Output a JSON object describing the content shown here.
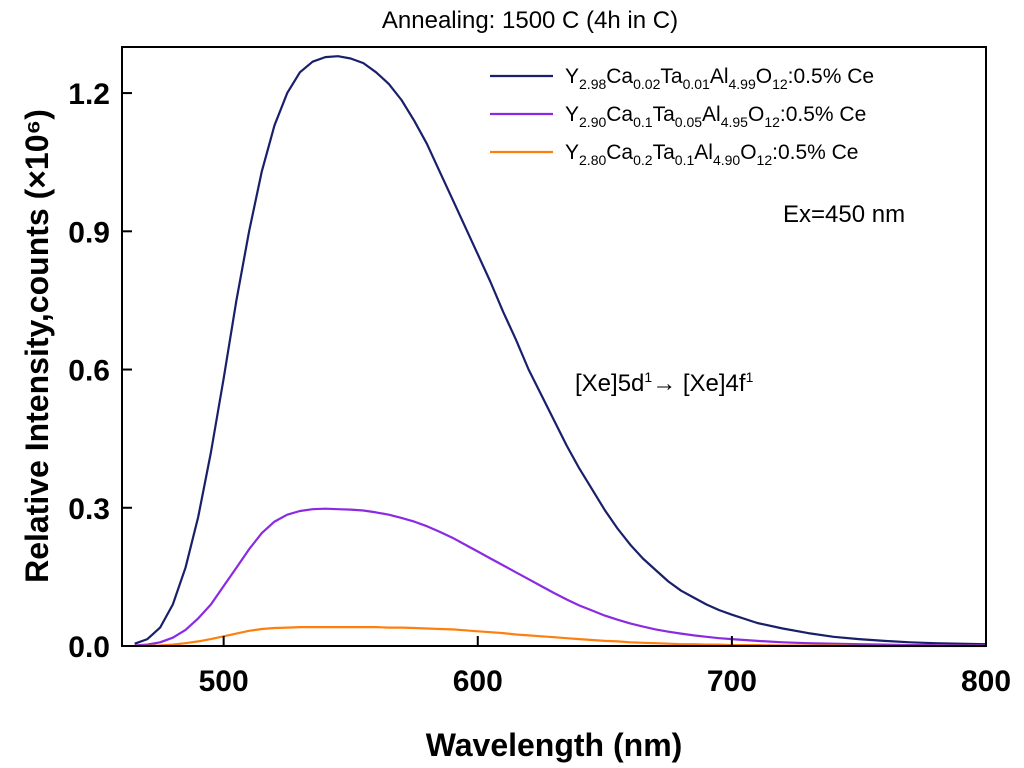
{
  "chart_data": {
    "type": "line",
    "title": "Annealing: 1500 C (4h in C)",
    "xlabel": "Wavelength (nm)",
    "ylabel": "Relative Intensity,counts (×10⁶)",
    "xlim": [
      460,
      800
    ],
    "ylim": [
      0,
      1.3
    ],
    "xticks": [
      500,
      600,
      700,
      800
    ],
    "yticks": [
      0.0,
      0.3,
      0.6,
      0.9,
      1.2
    ],
    "xtick_labels": [
      "500",
      "600",
      "700",
      "800"
    ],
    "ytick_labels": [
      "0.0",
      "0.3",
      "0.6",
      "0.9",
      "1.2"
    ],
    "grid": false,
    "legend_position": "top-right",
    "annotations": [
      {
        "id": "excitation",
        "text": "Ex=450 nm"
      },
      {
        "id": "transition",
        "parts": [
          {
            "t": "[Xe]5d"
          },
          {
            "t": "1",
            "s": "sup"
          },
          {
            "t": "→ [Xe]4f"
          },
          {
            "t": "1",
            "s": "sup"
          }
        ]
      }
    ],
    "x": [
      465,
      470,
      475,
      480,
      485,
      490,
      495,
      500,
      505,
      510,
      515,
      520,
      525,
      530,
      535,
      540,
      545,
      550,
      555,
      560,
      565,
      570,
      575,
      580,
      585,
      590,
      595,
      600,
      605,
      610,
      615,
      620,
      625,
      630,
      635,
      640,
      645,
      650,
      655,
      660,
      665,
      670,
      675,
      680,
      685,
      690,
      695,
      700,
      710,
      720,
      730,
      740,
      750,
      760,
      770,
      780,
      790,
      800
    ],
    "series": [
      {
        "name": "Y2.98Ca0.02Ta0.01Al4.99O12:0.5% Ce",
        "name_parts": [
          {
            "t": "Y"
          },
          {
            "t": "2.98",
            "s": "sub"
          },
          {
            "t": "Ca"
          },
          {
            "t": "0.02",
            "s": "sub"
          },
          {
            "t": "Ta"
          },
          {
            "t": "0.01",
            "s": "sub"
          },
          {
            "t": "Al"
          },
          {
            "t": "4.99",
            "s": "sub"
          },
          {
            "t": "O"
          },
          {
            "t": "12",
            "s": "sub"
          },
          {
            "t": ":0.5% Ce"
          }
        ],
        "color": "#1a1f6b",
        "values": [
          0.005,
          0.015,
          0.04,
          0.09,
          0.17,
          0.28,
          0.42,
          0.58,
          0.75,
          0.9,
          1.03,
          1.13,
          1.2,
          1.245,
          1.268,
          1.278,
          1.28,
          1.275,
          1.265,
          1.245,
          1.22,
          1.185,
          1.14,
          1.09,
          1.03,
          0.97,
          0.91,
          0.85,
          0.79,
          0.725,
          0.665,
          0.6,
          0.545,
          0.49,
          0.435,
          0.385,
          0.34,
          0.295,
          0.255,
          0.22,
          0.19,
          0.165,
          0.14,
          0.12,
          0.105,
          0.09,
          0.078,
          0.068,
          0.05,
          0.038,
          0.028,
          0.02,
          0.015,
          0.011,
          0.008,
          0.006,
          0.005,
          0.004
        ]
      },
      {
        "name": "Y2.90Ca0.1Ta0.05Al4.95O12:0.5% Ce",
        "name_parts": [
          {
            "t": "Y"
          },
          {
            "t": "2.90",
            "s": "sub"
          },
          {
            "t": "Ca"
          },
          {
            "t": "0.1",
            "s": "sub"
          },
          {
            "t": "Ta"
          },
          {
            "t": "0.05",
            "s": "sub"
          },
          {
            "t": "Al"
          },
          {
            "t": "4.95",
            "s": "sub"
          },
          {
            "t": "O"
          },
          {
            "t": "12",
            "s": "sub"
          },
          {
            "t": ":0.5% Ce"
          }
        ],
        "color": "#8a2be2",
        "values": [
          0.001,
          0.003,
          0.008,
          0.018,
          0.035,
          0.06,
          0.09,
          0.13,
          0.17,
          0.21,
          0.245,
          0.27,
          0.285,
          0.293,
          0.297,
          0.298,
          0.297,
          0.296,
          0.294,
          0.29,
          0.285,
          0.278,
          0.27,
          0.26,
          0.248,
          0.235,
          0.22,
          0.205,
          0.19,
          0.175,
          0.16,
          0.145,
          0.13,
          0.115,
          0.101,
          0.088,
          0.077,
          0.066,
          0.057,
          0.049,
          0.042,
          0.036,
          0.031,
          0.027,
          0.023,
          0.02,
          0.017,
          0.015,
          0.011,
          0.008,
          0.006,
          0.005,
          0.004,
          0.003,
          0.002,
          0.002,
          0.001,
          0.001
        ]
      },
      {
        "name": "Y2.80Ca0.2Ta0.1Al4.90O12:0.5% Ce",
        "name_parts": [
          {
            "t": "Y"
          },
          {
            "t": "2.80",
            "s": "sub"
          },
          {
            "t": "Ca"
          },
          {
            "t": "0.2",
            "s": "sub"
          },
          {
            "t": "Ta"
          },
          {
            "t": "0.1",
            "s": "sub"
          },
          {
            "t": "Al"
          },
          {
            "t": "4.90",
            "s": "sub"
          },
          {
            "t": "O"
          },
          {
            "t": "12",
            "s": "sub"
          },
          {
            "t": ":0.5% Ce"
          }
        ],
        "color": "#ff7f0e",
        "values": [
          0.0,
          0.0005,
          0.001,
          0.003,
          0.006,
          0.01,
          0.015,
          0.021,
          0.027,
          0.033,
          0.037,
          0.039,
          0.04,
          0.041,
          0.041,
          0.041,
          0.041,
          0.041,
          0.041,
          0.041,
          0.04,
          0.04,
          0.039,
          0.038,
          0.037,
          0.036,
          0.034,
          0.032,
          0.03,
          0.028,
          0.025,
          0.023,
          0.021,
          0.019,
          0.017,
          0.015,
          0.013,
          0.011,
          0.01,
          0.008,
          0.007,
          0.006,
          0.005,
          0.004,
          0.004,
          0.003,
          0.003,
          0.002,
          0.002,
          0.001,
          0.001,
          0.001,
          0.0,
          0.0,
          0.0,
          0.0,
          0.0,
          0.0
        ]
      }
    ]
  }
}
